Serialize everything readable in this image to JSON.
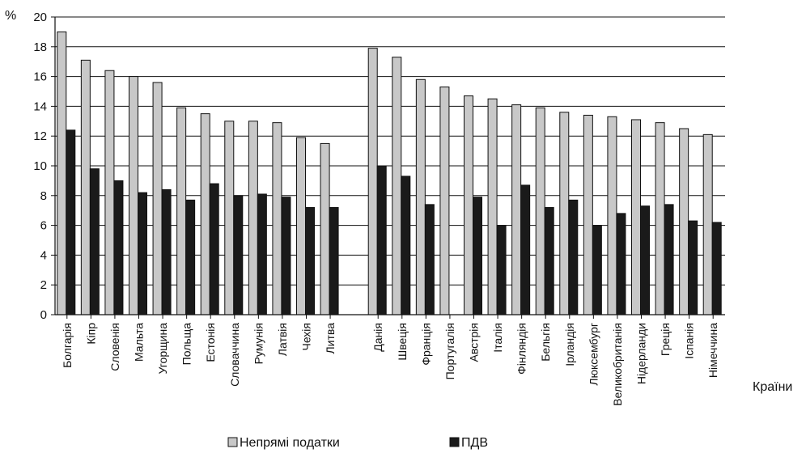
{
  "chart_data": {
    "type": "bar",
    "ylabel": "%",
    "xlabel": "Країни",
    "ylim": [
      0,
      20
    ],
    "yticks": [
      0,
      2,
      4,
      6,
      8,
      10,
      12,
      14,
      16,
      18,
      20
    ],
    "grid": true,
    "legend_position": "bottom",
    "colors": {
      "indirect": "#c8c8c8",
      "vat": "#1a1a1a",
      "axis": "#111111"
    },
    "categories": [
      "Болгарія",
      "Кіпр",
      "Словенія",
      "Мальта",
      "Угорщина",
      "Польща",
      "Естонія",
      "Словаччина",
      "Румунія",
      "Латвія",
      "Чехія",
      "Литва",
      "Данія",
      "Швеція",
      "Франція",
      "Португалія",
      "Австрія",
      "Італія",
      "Фінляндія",
      "Бельгія",
      "Ірландія",
      "Люксембург",
      "Великобританія",
      "Нідерланди",
      "Греція",
      "Іспанія",
      "Німеччина"
    ],
    "groups": [
      12,
      15
    ],
    "series": [
      {
        "name": "Непрямі податки",
        "color": "#c8c8c8",
        "values": [
          19.0,
          17.1,
          16.4,
          16.0,
          15.6,
          13.9,
          13.5,
          13.0,
          13.0,
          12.9,
          11.9,
          11.5,
          17.9,
          17.3,
          15.8,
          15.3,
          14.7,
          14.5,
          14.1,
          13.9,
          13.6,
          13.4,
          13.3,
          13.1,
          12.9,
          12.5,
          12.1
        ]
      },
      {
        "name": "ПДВ",
        "color": "#1a1a1a",
        "values": [
          12.4,
          9.8,
          9.0,
          8.2,
          8.4,
          7.7,
          8.8,
          8.0,
          8.1,
          7.9,
          7.2,
          7.2,
          10.0,
          9.3,
          7.4,
          null,
          7.9,
          6.0,
          8.7,
          7.2,
          7.7,
          6.0,
          6.8,
          7.3,
          7.4,
          6.3,
          6.2
        ]
      }
    ]
  }
}
